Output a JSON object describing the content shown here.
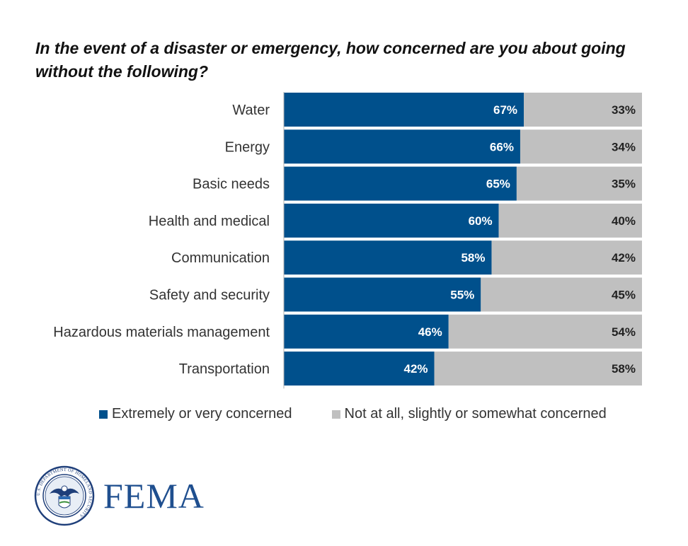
{
  "chart_data": {
    "type": "bar",
    "orientation": "horizontal",
    "stacked": true,
    "title": "In the event of a disaster or emergency, how concerned are you about going without the following?",
    "categories": [
      "Water",
      "Energy",
      "Basic needs",
      "Health and medical",
      "Communication",
      "Safety and security",
      "Hazardous materials management",
      "Transportation"
    ],
    "series": [
      {
        "name": "Extremely or very concerned",
        "values": [
          67,
          66,
          65,
          60,
          58,
          55,
          46,
          42
        ],
        "color": "#00508c"
      },
      {
        "name": "Not at all, slightly or somewhat concerned",
        "values": [
          33,
          34,
          35,
          40,
          42,
          45,
          54,
          58
        ],
        "color": "#c0c0c0"
      }
    ],
    "value_suffix": "%",
    "xlim": [
      0,
      100
    ],
    "legend_position": "bottom"
  },
  "logo": {
    "wordmark": "FEMA",
    "seal_text": "U.S. DEPARTMENT OF HOMELAND SECURITY"
  }
}
